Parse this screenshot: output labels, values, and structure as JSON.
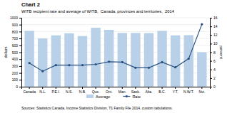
{
  "chart_data": {
    "type": "bar",
    "title": "Chart 2",
    "subtitle": "WITB recipient rate and average of WITB,  Canada, provinces and territories,  2014",
    "categories": [
      "Canada",
      "N.L.",
      "P.E.I.",
      "N.S.",
      "N.B.",
      "Que.",
      "Ont.",
      "Man.",
      "Sask.",
      "Alta.",
      "B.C.",
      "Y.T.",
      "N.W.T.",
      "Nvt."
    ],
    "series": [
      {
        "name": "Average",
        "type": "bar",
        "color": "#b8d0e8",
        "values": [
          810,
          700,
          745,
          775,
          735,
          855,
          825,
          780,
          780,
          778,
          810,
          745,
          748,
          500
        ]
      },
      {
        "name": "Rate",
        "type": "line",
        "axis": "y2",
        "color": "#2a5080",
        "marker": "circle",
        "values": [
          5.5,
          3.6,
          5.0,
          5.0,
          5.0,
          5.2,
          5.8,
          5.7,
          4.4,
          4.4,
          5.7,
          4.5,
          6.5,
          14.5
        ]
      }
    ],
    "ylabel": "dollars",
    "y2label": "percent",
    "ylim": [
      0,
      1000
    ],
    "yticks": [
      0,
      100,
      200,
      300,
      400,
      500,
      600,
      700,
      800,
      900,
      1000
    ],
    "y2lim": [
      0,
      16
    ],
    "y2ticks": [
      0,
      2,
      4,
      6,
      8,
      10,
      12,
      14,
      16
    ],
    "grid": true,
    "legend": "bottom",
    "source": "Sources: Statistics Canada, Income Statistics Division, T1 Family File 2014, custom tabulations."
  }
}
